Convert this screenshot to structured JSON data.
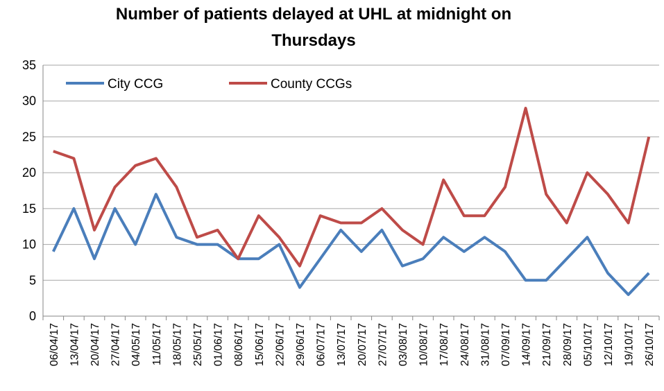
{
  "chart_data": {
    "type": "line",
    "title": [
      "Number of patients delayed at UHL at midnight on",
      "Thursdays"
    ],
    "categories": [
      "06/04/17",
      "13/04/17",
      "20/04/17",
      "27/04/17",
      "04/05/17",
      "11/05/17",
      "18/05/17",
      "25/05/17",
      "01/06/17",
      "08/06/17",
      "15/06/17",
      "22/06/17",
      "29/06/17",
      "06/07/17",
      "13/07/17",
      "20/07/17",
      "27/07/17",
      "03/08/17",
      "10/08/17",
      "17/08/17",
      "24/08/17",
      "31/08/17",
      "07/09/17",
      "14/09/17",
      "21/09/17",
      "28/09/17",
      "05/10/17",
      "12/10/17",
      "19/10/17",
      "26/10/17"
    ],
    "series": [
      {
        "name": "City CCG",
        "color": "#4a7ebb",
        "values": [
          9,
          15,
          8,
          15,
          10,
          17,
          11,
          10,
          10,
          8,
          8,
          10,
          4,
          8,
          12,
          9,
          12,
          7,
          8,
          11,
          9,
          11,
          9,
          5,
          5,
          8,
          11,
          6,
          3,
          6
        ]
      },
      {
        "name": "County CCGs",
        "color": "#be4b48",
        "values": [
          23,
          22,
          12,
          18,
          21,
          22,
          18,
          11,
          12,
          8,
          14,
          11,
          7,
          14,
          13,
          13,
          15,
          12,
          10,
          19,
          14,
          14,
          18,
          29,
          17,
          13,
          20,
          17,
          13,
          25
        ]
      }
    ],
    "ylim": [
      0,
      35
    ],
    "yticks": [
      0,
      5,
      10,
      15,
      20,
      25,
      30,
      35
    ],
    "grid": true,
    "legend": "top-left"
  }
}
